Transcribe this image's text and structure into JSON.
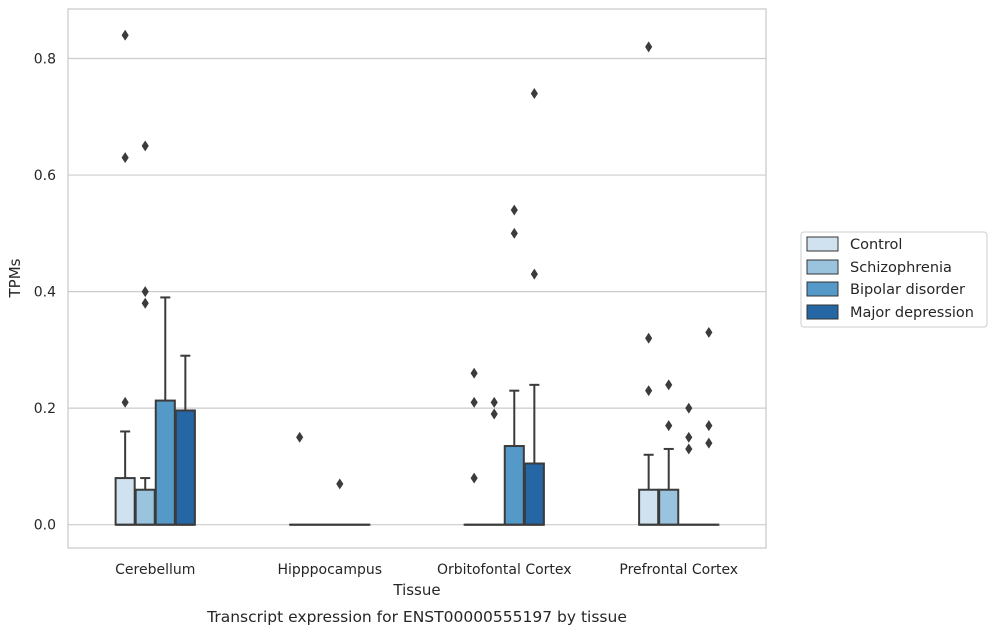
{
  "chart_data": {
    "type": "box",
    "xlabel": "Tissue",
    "ylabel": "TPMs",
    "caption": "Transcript expression for ENST00000555197 by tissue",
    "ylim": [
      -0.04,
      0.885
    ],
    "yticks": [
      0.0,
      0.2,
      0.4,
      0.6,
      0.8
    ],
    "ytick_labels": [
      "0.0",
      "0.2",
      "0.4",
      "0.6",
      "0.8"
    ],
    "grid": "horizontal",
    "legend_position": "right",
    "categories": [
      "Cerebellum",
      "Hipppocampus",
      "Orbitofontal Cortex",
      "Prefrontal Cortex"
    ],
    "series": [
      {
        "name": "Control",
        "color": "#d0e1f0",
        "boxes": [
          {
            "q1": 0.0,
            "median": 0.0,
            "q3": 0.08,
            "whisker_low": 0.0,
            "whisker_high": 0.16,
            "outliers": [
              0.84,
              0.63,
              0.21
            ]
          },
          {
            "q1": 0.0,
            "median": 0.0,
            "q3": 0.0,
            "whisker_low": 0.0,
            "whisker_high": 0.0,
            "outliers": [
              0.15
            ]
          },
          {
            "q1": 0.0,
            "median": 0.0,
            "q3": 0.0,
            "whisker_low": 0.0,
            "whisker_high": 0.0,
            "outliers": [
              0.26,
              0.21,
              0.08
            ]
          },
          {
            "q1": 0.0,
            "median": 0.0,
            "q3": 0.06,
            "whisker_low": 0.0,
            "whisker_high": 0.12,
            "outliers": [
              0.82,
              0.32,
              0.23
            ]
          }
        ]
      },
      {
        "name": "Schizophrenia",
        "color": "#9ac3dd",
        "boxes": [
          {
            "q1": 0.0,
            "median": 0.0,
            "q3": 0.06,
            "whisker_low": 0.0,
            "whisker_high": 0.08,
            "outliers": [
              0.65,
              0.4,
              0.38
            ]
          },
          {
            "q1": 0.0,
            "median": 0.0,
            "q3": 0.0,
            "whisker_low": 0.0,
            "whisker_high": 0.0,
            "outliers": []
          },
          {
            "q1": 0.0,
            "median": 0.0,
            "q3": 0.0,
            "whisker_low": 0.0,
            "whisker_high": 0.0,
            "outliers": [
              0.21,
              0.19
            ]
          },
          {
            "q1": 0.0,
            "median": 0.0,
            "q3": 0.06,
            "whisker_low": 0.0,
            "whisker_high": 0.13,
            "outliers": [
              0.24,
              0.17
            ]
          }
        ]
      },
      {
        "name": "Bipolar disorder",
        "color": "#5599c8",
        "boxes": [
          {
            "q1": 0.0,
            "median": 0.0,
            "q3": 0.213,
            "whisker_low": 0.0,
            "whisker_high": 0.39,
            "outliers": []
          },
          {
            "q1": 0.0,
            "median": 0.0,
            "q3": 0.0,
            "whisker_low": 0.0,
            "whisker_high": 0.0,
            "outliers": [
              0.07
            ]
          },
          {
            "q1": 0.0,
            "median": 0.0,
            "q3": 0.135,
            "whisker_low": 0.0,
            "whisker_high": 0.23,
            "outliers": [
              0.54,
              0.5
            ]
          },
          {
            "q1": 0.0,
            "median": 0.0,
            "q3": 0.0,
            "whisker_low": 0.0,
            "whisker_high": 0.0,
            "outliers": [
              0.2,
              0.15,
              0.13
            ]
          }
        ]
      },
      {
        "name": "Major depression",
        "color": "#2566a5",
        "boxes": [
          {
            "q1": 0.0,
            "median": 0.0,
            "q3": 0.196,
            "whisker_low": 0.0,
            "whisker_high": 0.29,
            "outliers": []
          },
          {
            "q1": 0.0,
            "median": 0.0,
            "q3": 0.0,
            "whisker_low": 0.0,
            "whisker_high": 0.0,
            "outliers": []
          },
          {
            "q1": 0.0,
            "median": 0.0,
            "q3": 0.105,
            "whisker_low": 0.0,
            "whisker_high": 0.24,
            "outliers": [
              0.74,
              0.43
            ]
          },
          {
            "q1": 0.0,
            "median": 0.0,
            "q3": 0.0,
            "whisker_low": 0.0,
            "whisker_high": 0.0,
            "outliers": [
              0.33,
              0.17,
              0.14
            ]
          }
        ]
      }
    ]
  }
}
